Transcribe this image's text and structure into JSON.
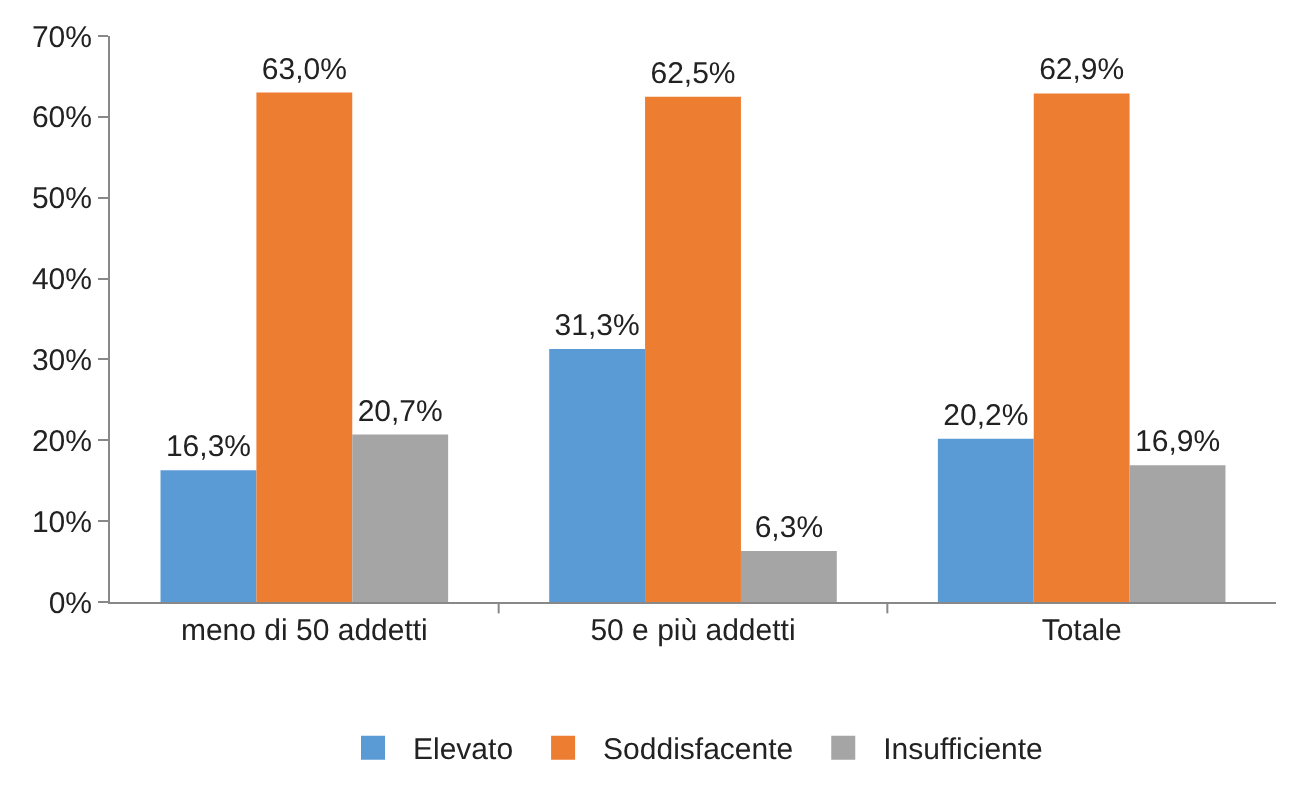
{
  "chart_data": {
    "type": "bar",
    "categories": [
      "meno di 50 addetti",
      "50 e più addetti",
      "Totale"
    ],
    "series": [
      {
        "name": "Elevato",
        "color": "#5b9bd5",
        "values": [
          16.3,
          31.3,
          20.2
        ],
        "value_labels": [
          "16,3%",
          "31,3%",
          "20,2%"
        ]
      },
      {
        "name": "Soddisfacente",
        "color": "#ed7d31",
        "values": [
          63.0,
          62.5,
          62.9
        ],
        "value_labels": [
          "63,0%",
          "62,5%",
          "62,9%"
        ]
      },
      {
        "name": "Insufficiente",
        "color": "#a5a5a5",
        "values": [
          20.7,
          6.3,
          16.9
        ],
        "value_labels": [
          "20,7%",
          "6,3%",
          "16,9%"
        ]
      }
    ],
    "ylim": [
      0,
      70
    ],
    "yticks": [
      {
        "value": 0,
        "label": "0%"
      },
      {
        "value": 10,
        "label": "10%"
      },
      {
        "value": 20,
        "label": "20%"
      },
      {
        "value": 30,
        "label": "30%"
      },
      {
        "value": 40,
        "label": "40%"
      },
      {
        "value": 50,
        "label": "50%"
      },
      {
        "value": 60,
        "label": "60%"
      },
      {
        "value": 70,
        "label": "70%"
      }
    ],
    "grid": false,
    "legend": "bottom"
  }
}
